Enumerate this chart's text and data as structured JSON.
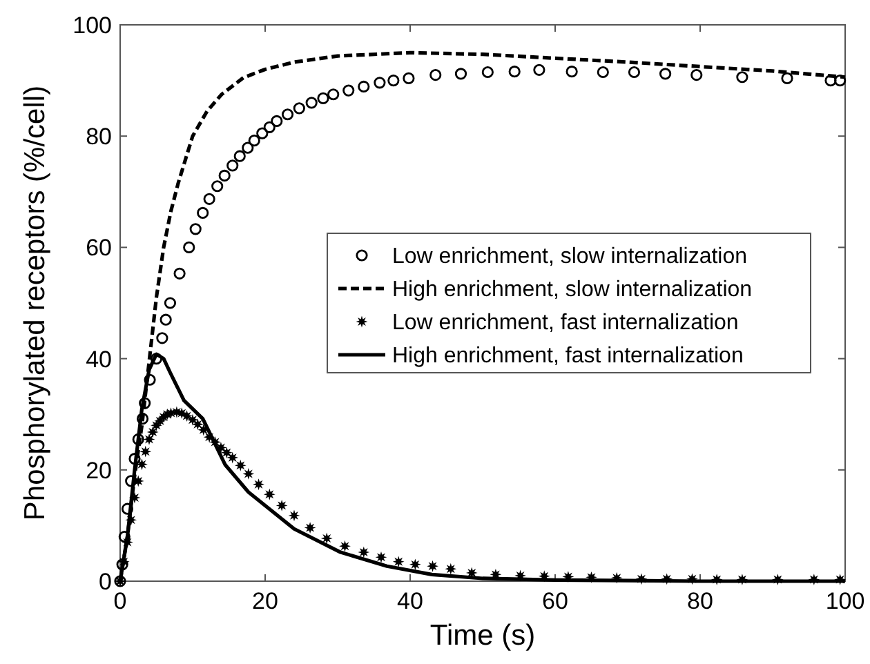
{
  "chart_data": {
    "type": "line",
    "xlabel": "Time (s)",
    "ylabel": "Phosphorylated receptors (%/cell)",
    "xlim": [
      0,
      100
    ],
    "ylim": [
      0,
      100
    ],
    "xticks": [
      0,
      20,
      40,
      60,
      80,
      100
    ],
    "yticks": [
      0,
      20,
      40,
      60,
      80,
      100
    ],
    "grid": false,
    "legend": "right",
    "series": [
      {
        "name": "Low enrichment, slow internalization",
        "type": "scatter",
        "marker": "circle",
        "color": "#000000",
        "x": [
          0,
          0.3,
          0.6,
          1,
          1.5,
          2,
          2.5,
          3.1,
          3.4,
          4.1,
          5,
          5.8,
          6.3,
          6.9,
          8.2,
          9.5,
          10.4,
          11.4,
          12.3,
          13.4,
          14.4,
          15.5,
          16.5,
          17.6,
          18.5,
          19.6,
          20.6,
          21.6,
          23.1,
          24.7,
          26.4,
          28,
          29.4,
          31.5,
          33.6,
          35.8,
          37.7,
          39.8,
          43.5,
          47,
          50.7,
          54.4,
          57.8,
          62.3,
          66.6,
          70.9,
          75.2,
          79.5,
          85.8,
          92,
          98,
          99.3
        ],
        "values": [
          0,
          3,
          8,
          13,
          18,
          22,
          25.5,
          29.2,
          32,
          36.2,
          40,
          43.7,
          47,
          50,
          55.3,
          60,
          63.3,
          66.2,
          68.7,
          71,
          72.9,
          74.7,
          76.4,
          77.9,
          79.2,
          80.5,
          81.6,
          82.7,
          83.9,
          85,
          86,
          86.8,
          87.5,
          88.2,
          88.9,
          89.6,
          90,
          90.4,
          91,
          91.2,
          91.5,
          91.6,
          91.9,
          91.6,
          91.5,
          91.5,
          91.2,
          91,
          90.6,
          90.4,
          90,
          90
        ]
      },
      {
        "name": "High enrichment, slow internalization",
        "line_style": "dashed",
        "marker": "none",
        "color": "#000000",
        "x": [
          0,
          1,
          2,
          3,
          3.7,
          5,
          6,
          7,
          8,
          10,
          12,
          14,
          17,
          20,
          24,
          30,
          40,
          50,
          60,
          70,
          80,
          90,
          100
        ],
        "values": [
          0,
          8,
          19,
          28,
          36,
          51,
          60,
          66.5,
          71.5,
          80,
          84.5,
          87.5,
          90.5,
          92,
          93.3,
          94.4,
          95,
          94.7,
          94,
          93.3,
          92.5,
          91.7,
          90.6
        ]
      },
      {
        "name": "Low enrichment, fast internalization",
        "type": "scatter",
        "marker": "star",
        "color": "#000000",
        "x": [
          0,
          0.5,
          1,
          1.5,
          2,
          2.5,
          3,
          3.5,
          4,
          4.5,
          5,
          5.5,
          6,
          6.5,
          7,
          7.8,
          8.5,
          9.2,
          10,
          10.7,
          11.5,
          12.3,
          13.1,
          13.9,
          14.7,
          15.5,
          16.6,
          17.7,
          19.1,
          20.6,
          22.3,
          24,
          26.2,
          28.5,
          31,
          33.6,
          36,
          38.4,
          40.7,
          43.1,
          45.6,
          48.5,
          51.8,
          55.2,
          58.5,
          61.8,
          65,
          68.5,
          71.9,
          75.4,
          78.9,
          82.3,
          85.8,
          90.7,
          95.7,
          99.3
        ],
        "values": [
          0,
          3.5,
          7,
          11,
          15,
          18,
          21,
          23.3,
          25.5,
          26.8,
          28,
          28.8,
          29.5,
          30,
          30.2,
          30.4,
          30.2,
          29.7,
          29,
          28.2,
          27.2,
          25.9,
          25,
          24,
          23.1,
          22.2,
          20.8,
          19.3,
          17.4,
          15.6,
          13.6,
          11.8,
          9.6,
          7.7,
          6.3,
          5.2,
          4.3,
          3.5,
          3,
          2.7,
          2.2,
          1.5,
          1.2,
          1,
          0.9,
          0.8,
          0.7,
          0.6,
          0.4,
          0.4,
          0.4,
          0.3,
          0.3,
          0.3,
          0.3,
          0.3
        ]
      },
      {
        "name": "High enrichment, fast internalization",
        "line_style": "solid",
        "marker": "none",
        "color": "#000000",
        "x": [
          0,
          1,
          2,
          3,
          4,
          5,
          6,
          6.9,
          8.8,
          11.4,
          14.5,
          17.7,
          24,
          30.4,
          36.8,
          43,
          50,
          60,
          70,
          80,
          100
        ],
        "values": [
          0,
          8,
          20,
          31,
          38,
          40.8,
          40,
          37.5,
          32.5,
          29.2,
          20.9,
          16,
          9.4,
          5.2,
          2.7,
          1.2,
          0.5,
          0.2,
          0.1,
          0,
          0
        ]
      }
    ]
  }
}
